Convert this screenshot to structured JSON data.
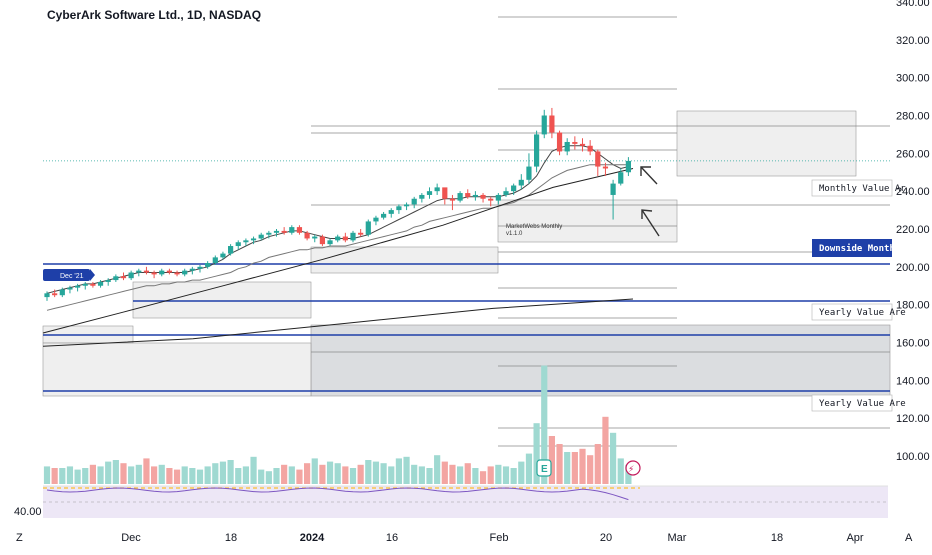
{
  "title": "CyberArk Software Ltd., 1D, NASDAQ",
  "chart_data": {
    "type": "candlestick",
    "y_ticks": [
      "340.00",
      "320.00",
      "300.00",
      "280.00",
      "260.00",
      "240.00",
      "220.00",
      "200.00",
      "180.00",
      "160.00",
      "140.00",
      "120.00",
      "100.00"
    ],
    "y_values": [
      340,
      320,
      300,
      280,
      260,
      240,
      220,
      200,
      180,
      160,
      140,
      120,
      100
    ],
    "ylim": [
      87,
      342
    ],
    "x_ticks": [
      {
        "label": "Dec",
        "bold": false
      },
      {
        "label": "18",
        "bold": false
      },
      {
        "label": "2024",
        "bold": true
      },
      {
        "label": "16",
        "bold": false
      },
      {
        "label": "Feb",
        "bold": false
      },
      {
        "label": "20",
        "bold": false
      },
      {
        "label": "Mar",
        "bold": false
      },
      {
        "label": "18",
        "bold": false
      },
      {
        "label": "Apr",
        "bold": false
      }
    ],
    "corner_left": "Z",
    "corner_right": "A",
    "rsi_tick": "40.00",
    "candles_ohlc": [
      [
        184,
        187,
        182,
        186
      ],
      [
        186,
        188,
        184,
        185
      ],
      [
        185,
        189,
        184,
        188
      ],
      [
        188,
        190,
        186,
        189
      ],
      [
        189,
        191,
        187,
        190
      ],
      [
        190,
        192,
        188,
        191
      ],
      [
        191,
        192,
        189,
        190
      ],
      [
        190,
        193,
        189,
        192
      ],
      [
        192,
        194,
        190,
        193
      ],
      [
        193,
        196,
        192,
        195
      ],
      [
        195,
        197,
        193,
        194
      ],
      [
        194,
        198,
        193,
        197
      ],
      [
        197,
        199,
        195,
        198
      ],
      [
        198,
        200,
        196,
        197
      ],
      [
        197,
        198,
        194,
        196
      ],
      [
        196,
        199,
        195,
        198
      ],
      [
        198,
        199,
        196,
        197
      ],
      [
        197,
        198,
        195,
        196
      ],
      [
        196,
        199,
        195,
        198
      ],
      [
        198,
        200,
        196,
        199
      ],
      [
        199,
        201,
        197,
        200
      ],
      [
        200,
        203,
        199,
        202
      ],
      [
        202,
        206,
        201,
        205
      ],
      [
        205,
        208,
        204,
        207
      ],
      [
        207,
        212,
        206,
        211
      ],
      [
        211,
        214,
        209,
        213
      ],
      [
        213,
        215,
        211,
        214
      ],
      [
        214,
        216,
        212,
        215
      ],
      [
        215,
        218,
        214,
        217
      ],
      [
        217,
        219,
        215,
        218
      ],
      [
        218,
        220,
        216,
        219
      ],
      [
        219,
        221,
        217,
        218
      ],
      [
        218,
        222,
        217,
        221
      ],
      [
        221,
        222,
        217,
        218
      ],
      [
        218,
        219,
        214,
        215
      ],
      [
        215,
        217,
        213,
        216
      ],
      [
        216,
        217,
        211,
        212
      ],
      [
        212,
        215,
        211,
        214
      ],
      [
        214,
        217,
        213,
        216
      ],
      [
        216,
        218,
        213,
        214
      ],
      [
        214,
        219,
        213,
        218
      ],
      [
        218,
        220,
        216,
        217
      ],
      [
        217,
        225,
        216,
        224
      ],
      [
        224,
        227,
        222,
        226
      ],
      [
        226,
        229,
        225,
        228
      ],
      [
        228,
        231,
        226,
        230
      ],
      [
        230,
        233,
        228,
        232
      ],
      [
        232,
        234,
        230,
        233
      ],
      [
        233,
        237,
        231,
        236
      ],
      [
        236,
        239,
        234,
        238
      ],
      [
        238,
        242,
        236,
        240
      ],
      [
        240,
        244,
        238,
        242
      ],
      [
        242,
        241,
        233,
        236
      ],
      [
        236,
        238,
        230,
        235
      ],
      [
        235,
        240,
        234,
        239
      ],
      [
        239,
        241,
        236,
        237
      ],
      [
        237,
        240,
        235,
        238
      ],
      [
        238,
        239,
        234,
        236
      ],
      [
        236,
        237,
        232,
        235
      ],
      [
        235,
        239,
        233,
        238
      ],
      [
        238,
        242,
        237,
        240
      ],
      [
        240,
        244,
        238,
        243
      ],
      [
        243,
        249,
        241,
        246
      ],
      [
        246,
        260,
        244,
        253
      ],
      [
        253,
        272,
        250,
        270
      ],
      [
        270,
        283,
        268,
        280
      ],
      [
        280,
        284,
        268,
        271
      ],
      [
        271,
        272,
        259,
        261
      ],
      [
        261,
        268,
        259,
        266
      ],
      [
        266,
        269,
        262,
        265
      ],
      [
        265,
        268,
        261,
        264
      ],
      [
        264,
        267,
        259,
        261
      ],
      [
        261,
        262,
        248,
        253
      ],
      [
        253,
        255,
        248,
        252
      ],
      [
        238,
        246,
        225,
        244
      ],
      [
        244,
        252,
        243,
        250
      ],
      [
        250,
        258,
        248,
        256
      ]
    ],
    "ema_short": [
      186,
      187,
      188,
      189,
      190,
      191,
      191,
      192,
      193,
      194,
      195,
      196,
      197,
      197,
      197,
      197,
      197,
      197,
      197,
      198,
      199,
      200,
      202,
      204,
      207,
      209,
      211,
      213,
      214,
      216,
      217,
      218,
      219,
      219,
      218,
      217,
      216,
      215,
      215,
      215,
      215,
      216,
      217,
      219,
      221,
      223,
      225,
      227,
      229,
      231,
      233,
      235,
      236,
      236,
      236,
      237,
      237,
      237,
      237,
      237,
      238,
      239,
      241,
      244,
      248,
      255,
      261,
      263,
      264,
      264,
      264,
      263,
      260,
      257,
      254,
      252,
      253
    ],
    "sma_mid": [
      177,
      178,
      179,
      180,
      181,
      182,
      183,
      184,
      185,
      186,
      187,
      188,
      189,
      190,
      190,
      191,
      191,
      192,
      192,
      193,
      193,
      194,
      195,
      196,
      197,
      199,
      200,
      202,
      203,
      205,
      206,
      207,
      208,
      209,
      209,
      210,
      210,
      211,
      211,
      211,
      212,
      213,
      214,
      215,
      216,
      217,
      218,
      219,
      221,
      222,
      224,
      225,
      226,
      227,
      228,
      229,
      230,
      231,
      231,
      232,
      233,
      234,
      236,
      238,
      241,
      244,
      247,
      249,
      251,
      252,
      253,
      254,
      254,
      254,
      254,
      254,
      254
    ],
    "sma_long_endpoints": [
      [
        0,
        165
      ],
      [
        80,
        176
      ],
      [
        180,
        190
      ],
      [
        280,
        204
      ],
      [
        400,
        222
      ],
      [
        510,
        242
      ],
      [
        590,
        252
      ]
    ],
    "ma200_endpoints": [
      [
        0,
        158
      ],
      [
        150,
        162
      ],
      [
        300,
        170
      ],
      [
        450,
        178
      ],
      [
        590,
        183
      ]
    ],
    "volume_relative": [
      0.55,
      0.5,
      0.5,
      0.55,
      0.45,
      0.5,
      0.6,
      0.55,
      0.7,
      0.75,
      0.65,
      0.55,
      0.6,
      0.8,
      0.55,
      0.6,
      0.5,
      0.45,
      0.55,
      0.5,
      0.45,
      0.55,
      0.65,
      0.7,
      0.75,
      0.5,
      0.55,
      0.85,
      0.45,
      0.4,
      0.5,
      0.6,
      0.55,
      0.45,
      0.65,
      0.8,
      0.6,
      0.7,
      0.65,
      0.55,
      0.5,
      0.6,
      0.75,
      0.7,
      0.65,
      0.55,
      0.8,
      0.85,
      0.6,
      0.55,
      0.5,
      0.9,
      0.7,
      0.6,
      0.55,
      0.65,
      0.5,
      0.4,
      0.55,
      0.6,
      0.55,
      0.5,
      0.7,
      0.95,
      1.9,
      3.7,
      1.5,
      1.25,
      1.0,
      1.0,
      1.1,
      0.9,
      1.25,
      2.1,
      1.6,
      0.8,
      0.6
    ],
    "annotations": [
      {
        "text": "Dec '21",
        "kind": "badge"
      },
      {
        "text": "Monthly Value Ar",
        "kind": "label"
      },
      {
        "text": "Downside Monthly",
        "kind": "badge"
      },
      {
        "text": "Yearly Value Are",
        "kind": "label"
      },
      {
        "text": "Yearly Value Are",
        "kind": "label"
      },
      {
        "text": "MarketWebs Monthly",
        "kind": "small"
      },
      {
        "text": "v1.1.0",
        "kind": "small"
      }
    ],
    "volume_badges": [
      {
        "text": "E"
      },
      {
        "text": "⚡"
      }
    ],
    "colors": {
      "up": "#26a69a",
      "down": "#ef5350",
      "vol_up": "#9fd9d1",
      "vol_down": "#f3a5a2",
      "hline": "#1e3fa8",
      "zone": "#d9d9d9",
      "ema": "#555555",
      "ma": "#222222",
      "rsi_bg": "#ede7f6",
      "rsi_line": "#7e57c2"
    }
  }
}
